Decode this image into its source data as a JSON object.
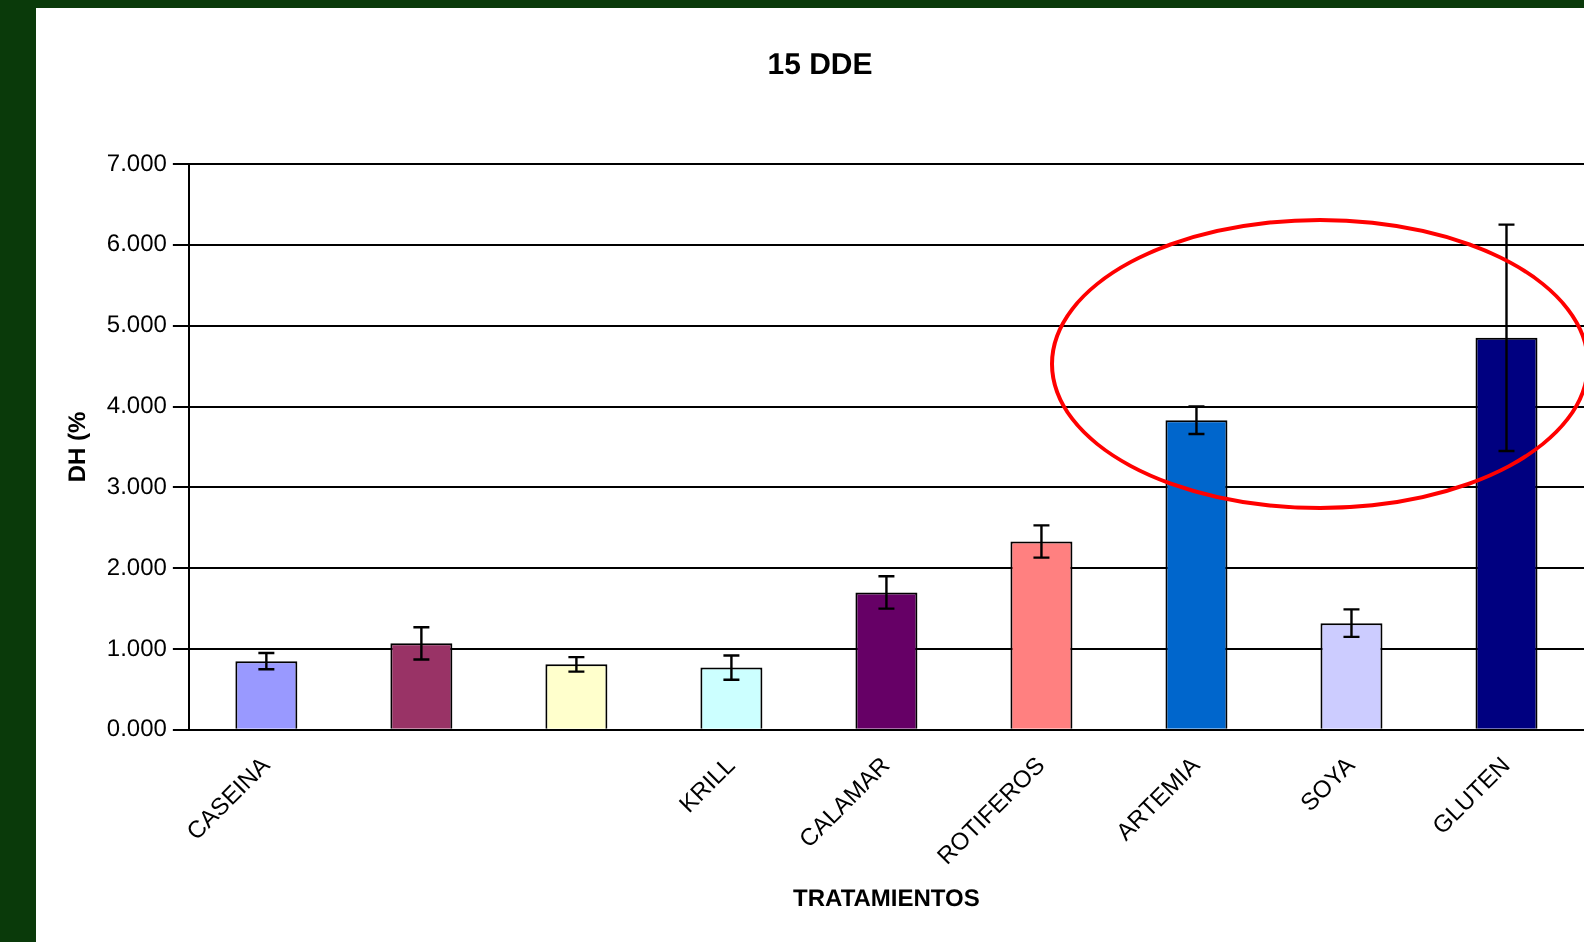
{
  "chart_data": {
    "type": "bar",
    "title": "15 DDE",
    "xlabel": "TRATAMIENTOS",
    "ylabel": "DH (%",
    "categories": [
      "CASEINA",
      null,
      null,
      "KRILL",
      "CALAMAR",
      "ROTIFEROS",
      "ARTEMIA",
      "SOYA",
      "GLUTEN"
    ],
    "values": [
      0.85,
      1.07,
      0.81,
      0.77,
      1.7,
      2.33,
      3.83,
      1.32,
      4.85
    ],
    "errors": [
      0.1,
      0.2,
      0.09,
      0.15,
      0.2,
      0.2,
      0.17,
      0.17,
      1.4
    ],
    "colors": [
      "#9999ff",
      "#993366",
      "#ffffcc",
      "#ccffff",
      "#660066",
      "#ff8080",
      "#0066cc",
      "#ccccff",
      "#000080"
    ],
    "ylim": [
      0,
      7
    ],
    "yticks": [
      {
        "value": 0,
        "label": "0.000"
      },
      {
        "value": 1,
        "label": "1.000"
      },
      {
        "value": 2,
        "label": "2.000"
      },
      {
        "value": 3,
        "label": "3.000"
      },
      {
        "value": 4,
        "label": "4.000"
      },
      {
        "value": 5,
        "label": "5.000"
      },
      {
        "value": 6,
        "label": "6.000"
      },
      {
        "value": 7,
        "label": "7.000"
      }
    ],
    "grid": "y"
  }
}
